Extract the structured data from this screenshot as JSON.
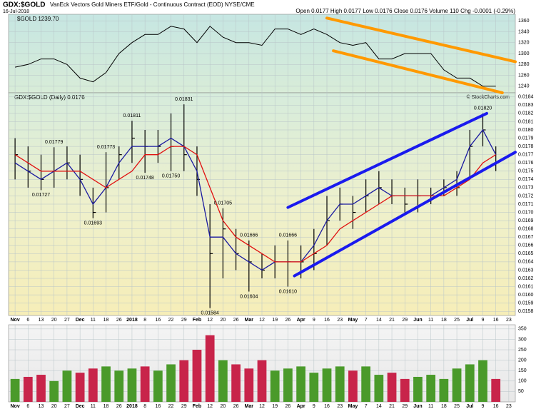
{
  "chart_data": {
    "type": "ohlc",
    "title": "GDX:$GOLD",
    "subtitle": "VanEck Vectors Gold Miners ETF/Gold - Continuous Contract (EOD) NYSE/CME",
    "date": "16-Jul-2018",
    "quote": "Open 0.0177  High 0.0177  Low 0.0176  Close 0.0176  Volume 110  Chg -0.0001 (-0.29%)",
    "credit": "© StockCharts.com",
    "categories": [
      "Nov",
      "6",
      "13",
      "20",
      "27",
      "Dec",
      "11",
      "18",
      "26",
      "2018",
      "8",
      "16",
      "22",
      "29",
      "Feb",
      "12",
      "20",
      "26",
      "Mar",
      "12",
      "19",
      "26",
      "Apr",
      "9",
      "16",
      "23",
      "May",
      "7",
      "14",
      "21",
      "29",
      "Jun",
      "11",
      "18",
      "25",
      "Jul",
      "9",
      "16",
      "23"
    ],
    "main": {
      "legend": "GDX:$GOLD (Daily) 0.0176",
      "color": "#000000",
      "high": [
        0.0179,
        0.0178,
        0.0177,
        0.01779,
        0.0178,
        0.0177,
        0.0173,
        0.01773,
        0.0178,
        0.01811,
        0.018,
        0.018,
        0.0182,
        0.01831,
        0.0178,
        0.0171,
        0.01705,
        0.0168,
        0.01666,
        0.0165,
        0.0166,
        0.01666,
        0.0166,
        0.0168,
        0.0172,
        0.0173,
        0.0172,
        0.0174,
        0.0175,
        0.0174,
        0.0173,
        0.0174,
        0.0173,
        0.0174,
        0.0175,
        0.018,
        0.0182,
        0.0178,
        null
      ],
      "low": [
        0.0174,
        0.0173,
        0.01727,
        0.0173,
        0.0174,
        0.0172,
        0.01693,
        0.017,
        0.0174,
        0.0176,
        0.01748,
        0.0176,
        0.0175,
        0.0175,
        0.0172,
        0.01584,
        0.0162,
        0.0163,
        0.01604,
        0.0162,
        0.0162,
        0.0161,
        0.0162,
        0.0163,
        0.0166,
        0.0169,
        0.0168,
        0.017,
        0.0171,
        0.0171,
        0.017,
        0.017,
        0.0171,
        0.0172,
        0.0172,
        0.0174,
        0.0178,
        0.0175,
        null
      ],
      "close": [
        0.0177,
        0.0175,
        0.0174,
        0.0175,
        0.0176,
        0.0174,
        0.017,
        0.0173,
        0.0177,
        0.0179,
        0.0178,
        0.0178,
        0.0178,
        0.0177,
        0.0174,
        0.0165,
        0.0168,
        0.0165,
        0.0164,
        0.0163,
        0.0164,
        0.0164,
        0.0164,
        0.0165,
        0.0169,
        0.0171,
        0.017,
        0.0172,
        0.0173,
        0.0172,
        0.0171,
        0.0172,
        0.0172,
        0.0173,
        0.0173,
        0.0178,
        0.018,
        0.0176,
        null
      ],
      "series": [
        {
          "color": "#1a1aa0",
          "values": [
            0.0176,
            0.0175,
            0.0174,
            0.0175,
            0.0176,
            0.0174,
            0.0171,
            0.0173,
            0.0176,
            0.0178,
            0.0178,
            0.0178,
            0.0179,
            0.0178,
            0.0175,
            0.0167,
            0.0167,
            0.0165,
            0.0164,
            0.0163,
            0.0164,
            0.0164,
            0.0164,
            0.0166,
            0.0169,
            0.0171,
            0.0171,
            0.0172,
            0.0173,
            0.0172,
            0.0172,
            0.0172,
            0.0172,
            0.0173,
            0.0174,
            0.0178,
            0.018,
            0.0177,
            null
          ]
        },
        {
          "color": "#e01010",
          "values": [
            0.0177,
            0.0176,
            0.0175,
            0.0175,
            0.0175,
            0.0175,
            0.0174,
            0.0173,
            0.0174,
            0.0175,
            0.0177,
            0.0177,
            0.0178,
            0.0178,
            0.0177,
            0.0173,
            0.0169,
            0.0167,
            0.0166,
            0.0165,
            0.0164,
            0.0164,
            0.0164,
            0.0165,
            0.0166,
            0.0168,
            0.0169,
            0.017,
            0.0171,
            0.0172,
            0.0172,
            0.0172,
            0.0172,
            0.0172,
            0.0173,
            0.0174,
            0.0176,
            0.0177,
            null
          ]
        }
      ],
      "annotations": [
        {
          "value": 0.01779,
          "label": "0.01779",
          "index": 3,
          "side": "high"
        },
        {
          "value": 0.01727,
          "label": "0.01727",
          "index": 2,
          "side": "low"
        },
        {
          "value": 0.01773,
          "label": "0.01773",
          "index": 7,
          "side": "high"
        },
        {
          "value": 0.01693,
          "label": "0.01693",
          "index": 6,
          "side": "low"
        },
        {
          "value": 0.01811,
          "label": "0.01811",
          "index": 9,
          "side": "high"
        },
        {
          "value": 0.01748,
          "label": "0.01748",
          "index": 10,
          "side": "low"
        },
        {
          "value": 0.0175,
          "label": "0.01750",
          "index": 12,
          "side": "low"
        },
        {
          "value": 0.01831,
          "label": "0.01831",
          "index": 13,
          "side": "high"
        },
        {
          "value": 0.01584,
          "label": "0.01584",
          "index": 15,
          "side": "low"
        },
        {
          "value": 0.01705,
          "label": "0.01705",
          "index": 16,
          "side": "high"
        },
        {
          "value": 0.01666,
          "label": "0.01666",
          "index": 18,
          "side": "high"
        },
        {
          "value": 0.01604,
          "label": "0.01604",
          "index": 18,
          "side": "low"
        },
        {
          "value": 0.01666,
          "label": "0.01666",
          "index": 21,
          "side": "high"
        },
        {
          "value": 0.0161,
          "label": "0.01610",
          "index": 21,
          "side": "low"
        },
        {
          "value": 0.0182,
          "label": "0.01820",
          "index": 36,
          "side": "high"
        }
      ],
      "trendlines": [
        {
          "color": "#1a1aee",
          "from": [
            21.5,
            0.01706
          ],
          "to": [
            36.8,
            0.0182
          ]
        },
        {
          "color": "#1a1aee",
          "from": [
            22,
            0.01623
          ],
          "to": [
            39,
            0.01773
          ]
        }
      ],
      "ylim": [
        0.01575,
        0.01845
      ],
      "yticks": [
        0.0158,
        0.0159,
        0.016,
        0.0161,
        0.0162,
        0.0163,
        0.0164,
        0.0165,
        0.0166,
        0.0167,
        0.0168,
        0.0169,
        0.017,
        0.0171,
        0.0172,
        0.0173,
        0.0174,
        0.0175,
        0.0176,
        0.0177,
        0.0178,
        0.0179,
        0.018,
        0.0181,
        0.0182,
        0.0183,
        0.0184
      ],
      "ytick_labels": [
        "0.0158",
        "0.0159",
        "0.0160",
        "0.0161",
        "0.0162",
        "0.0163",
        "0.0164",
        "0.0165",
        "0.0166",
        "0.0167",
        "0.0168",
        "0.0169",
        "0.0170",
        "0.0171",
        "0.0172",
        "0.0173",
        "0.0174",
        "0.0175",
        "0.0176",
        "0.0177",
        "0.0178",
        "0.0179",
        "0.0180",
        "0.0181",
        "0.0182",
        "0.0183",
        "0.0184"
      ]
    },
    "gold": {
      "legend": "$GOLD 1239.70",
      "color": "#000000",
      "values": [
        1275,
        1280,
        1290,
        1290,
        1280,
        1255,
        1248,
        1265,
        1300,
        1320,
        1335,
        1335,
        1350,
        1345,
        1320,
        1350,
        1330,
        1320,
        1320,
        1315,
        1345,
        1345,
        1335,
        1345,
        1335,
        1320,
        1315,
        1320,
        1290,
        1290,
        1300,
        1300,
        1300,
        1270,
        1255,
        1255,
        1240,
        1240,
        null
      ],
      "trendlines": [
        {
          "color": "#ff9900",
          "from": [
            24.5,
            1365
          ],
          "to": [
            39,
            1285
          ]
        },
        {
          "color": "#ff9900",
          "from": [
            25,
            1305
          ],
          "to": [
            38,
            1228
          ]
        }
      ],
      "ylim": [
        1228,
        1372
      ],
      "yticks": [
        1240,
        1260,
        1280,
        1300,
        1320,
        1340,
        1360
      ]
    },
    "volume": {
      "up_color": "#4a9a2a",
      "down_color": "#c8244a",
      "values": [
        110,
        120,
        130,
        100,
        150,
        140,
        160,
        170,
        150,
        160,
        170,
        150,
        180,
        200,
        250,
        320,
        200,
        180,
        160,
        200,
        150,
        160,
        170,
        140,
        160,
        170,
        150,
        170,
        130,
        140,
        110,
        120,
        130,
        110,
        160,
        180,
        200,
        110,
        null
      ],
      "ylim": [
        0,
        370
      ],
      "yticks": [
        50,
        100,
        150,
        200,
        250,
        300,
        350
      ]
    },
    "grid": true
  }
}
